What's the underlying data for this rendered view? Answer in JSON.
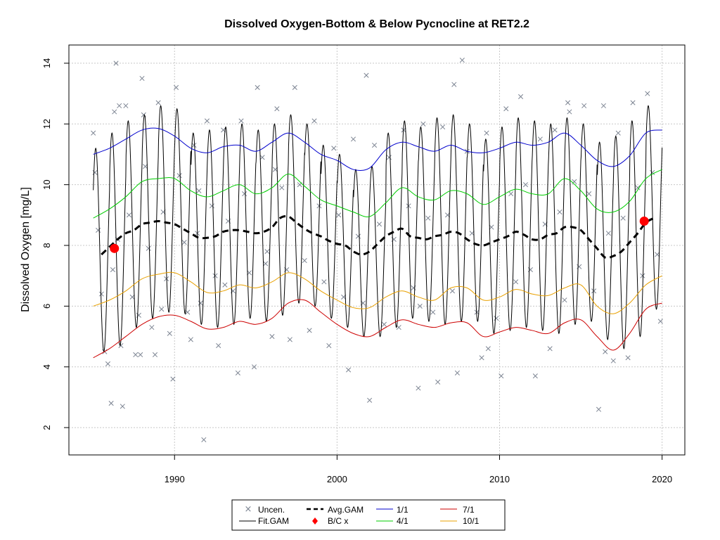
{
  "chart_data": {
    "type": "line",
    "title": "Dissolved Oxygen-Bottom & Below Pycnocline at RET2.2",
    "xlabel": "",
    "ylabel": "Dissolved Oxygen [mg/L]",
    "xlim": [
      1983.5,
      2021.4
    ],
    "ylim": [
      1.1,
      14.6
    ],
    "x_ticks": [
      1990,
      2000,
      2010,
      2020
    ],
    "y_ticks": [
      2,
      4,
      6,
      8,
      10,
      12,
      14
    ],
    "grid": true,
    "legend_position": "bottom-center",
    "legend": [
      "Uncen.",
      "Avg.GAM",
      "1/1",
      "7/1",
      "Fit.GAM",
      "B/C x",
      "4/1",
      "10/1"
    ],
    "colors": {
      "uncensored": "#7b8391",
      "fit_gam": "#000000",
      "avg_gam": "#000000",
      "bc_points": "#ff0000",
      "jan1": "#0000cd",
      "apr1": "#00cd00",
      "jul1": "#cd0000",
      "oct1": "#e8a000"
    },
    "series": [
      {
        "name": "1/1",
        "x": [
          1985,
          1986,
          1987,
          1988,
          1989,
          1990,
          1991,
          1992,
          1993,
          1994,
          1995,
          1996,
          1997,
          1998,
          1999,
          2000,
          2001,
          2002,
          2003,
          2004,
          2005,
          2006,
          2007,
          2008,
          2009,
          2010,
          2011,
          2012,
          2013,
          2014,
          2015,
          2016,
          2017,
          2018,
          2019,
          2020
        ],
        "values": [
          11.0,
          11.2,
          11.5,
          11.8,
          11.85,
          11.6,
          11.2,
          11.05,
          11.25,
          11.3,
          11.1,
          11.4,
          11.7,
          11.4,
          11.0,
          10.8,
          10.5,
          10.55,
          11.15,
          11.4,
          11.25,
          11.1,
          11.3,
          11.1,
          11.05,
          11.2,
          11.4,
          11.3,
          11.4,
          11.7,
          11.3,
          10.8,
          10.6,
          10.95,
          11.7,
          11.8
        ]
      },
      {
        "name": "4/1",
        "x": [
          1985,
          1986,
          1987,
          1988,
          1989,
          1990,
          1991,
          1992,
          1993,
          1994,
          1995,
          1996,
          1997,
          1998,
          1999,
          2000,
          2001,
          2002,
          2003,
          2004,
          2005,
          2006,
          2007,
          2008,
          2009,
          2010,
          2011,
          2012,
          2013,
          2014,
          2015,
          2016,
          2017,
          2018,
          2019,
          2020
        ],
        "values": [
          8.9,
          9.2,
          9.6,
          10.1,
          10.2,
          10.2,
          9.8,
          9.6,
          9.8,
          10.0,
          9.7,
          9.9,
          10.35,
          9.95,
          9.5,
          9.3,
          9.1,
          8.95,
          9.4,
          9.9,
          9.6,
          9.5,
          9.8,
          9.7,
          9.35,
          9.6,
          9.85,
          9.7,
          9.7,
          10.2,
          9.8,
          9.2,
          9.1,
          9.45,
          10.2,
          10.5
        ]
      },
      {
        "name": "Avg.GAM",
        "x": [
          1985.5,
          1986,
          1986.5,
          1987,
          1987.5,
          1988,
          1988.5,
          1989,
          1989.5,
          1990,
          1990.5,
          1991,
          1991.5,
          1992,
          1992.5,
          1993,
          1993.5,
          1994,
          1994.5,
          1995,
          1995.5,
          1996,
          1996.5,
          1997,
          1997.5,
          1998,
          1998.5,
          1999,
          1999.5,
          2000,
          2000.5,
          2001,
          2001.5,
          2002,
          2002.5,
          2003,
          2003.5,
          2004,
          2004.5,
          2005,
          2005.5,
          2006,
          2006.5,
          2007,
          2007.5,
          2008,
          2008.5,
          2009,
          2009.5,
          2010,
          2010.5,
          2011,
          2011.5,
          2012,
          2012.5,
          2013,
          2013.5,
          2014,
          2014.5,
          2015,
          2015.5,
          2016,
          2016.5,
          2017,
          2017.5,
          2018,
          2018.5,
          2019,
          2019.5
        ],
        "values": [
          7.7,
          7.95,
          8.2,
          8.4,
          8.5,
          8.7,
          8.75,
          8.8,
          8.75,
          8.7,
          8.55,
          8.4,
          8.25,
          8.25,
          8.3,
          8.45,
          8.5,
          8.5,
          8.45,
          8.4,
          8.45,
          8.6,
          8.9,
          8.95,
          8.75,
          8.55,
          8.4,
          8.3,
          8.15,
          8.05,
          8.0,
          7.8,
          7.7,
          7.8,
          8.05,
          8.3,
          8.45,
          8.55,
          8.3,
          8.25,
          8.2,
          8.3,
          8.35,
          8.45,
          8.4,
          8.2,
          8.05,
          8.0,
          8.1,
          8.2,
          8.3,
          8.45,
          8.35,
          8.2,
          8.2,
          8.35,
          8.4,
          8.6,
          8.6,
          8.5,
          8.2,
          7.9,
          7.6,
          7.65,
          7.8,
          8.1,
          8.4,
          8.75,
          8.9
        ]
      },
      {
        "name": "10/1",
        "x": [
          1985,
          1986,
          1987,
          1988,
          1989,
          1990,
          1991,
          1992,
          1993,
          1994,
          1995,
          1996,
          1997,
          1998,
          1999,
          2000,
          2001,
          2002,
          2003,
          2004,
          2005,
          2006,
          2007,
          2008,
          2009,
          2010,
          2011,
          2012,
          2013,
          2014,
          2015,
          2016,
          2017,
          2018,
          2019,
          2020
        ],
        "values": [
          6.0,
          6.2,
          6.5,
          6.9,
          7.05,
          7.1,
          6.8,
          6.45,
          6.5,
          6.7,
          6.6,
          6.8,
          7.1,
          6.9,
          6.5,
          6.2,
          5.95,
          5.95,
          6.3,
          6.5,
          6.3,
          6.2,
          6.6,
          6.6,
          6.2,
          6.3,
          6.55,
          6.4,
          6.35,
          6.6,
          6.7,
          6.0,
          5.75,
          6.1,
          6.7,
          7.0
        ]
      },
      {
        "name": "7/1",
        "x": [
          1985,
          1986,
          1987,
          1988,
          1989,
          1990,
          1991,
          1992,
          1993,
          1994,
          1995,
          1996,
          1997,
          1998,
          1999,
          2000,
          2001,
          2002,
          2003,
          2004,
          2005,
          2006,
          2007,
          2008,
          2009,
          2010,
          2011,
          2012,
          2013,
          2014,
          2015,
          2016,
          2017,
          2018,
          2019,
          2020
        ],
        "values": [
          4.3,
          4.6,
          5.0,
          5.4,
          5.65,
          5.7,
          5.5,
          5.25,
          5.3,
          5.5,
          5.4,
          5.6,
          6.1,
          6.2,
          5.8,
          5.4,
          5.1,
          5.0,
          5.3,
          5.55,
          5.4,
          5.3,
          5.45,
          5.45,
          5.0,
          5.15,
          5.3,
          5.2,
          5.1,
          5.45,
          5.55,
          5.0,
          4.55,
          5.1,
          5.9,
          6.1
        ]
      }
    ],
    "fit_gam": {
      "name": "Fit.GAM",
      "start_year": 1985,
      "end_year": 2020,
      "yearly_max": [
        11.2,
        11.7,
        12.1,
        12.3,
        12.6,
        12.5,
        11.7,
        11.8,
        11.9,
        12.0,
        11.8,
        12.0,
        12.3,
        12.0,
        11.3,
        11.0,
        10.5,
        10.6,
        11.7,
        12.1,
        11.9,
        12.2,
        12.3,
        12.0,
        11.5,
        11.9,
        12.2,
        12.1,
        12.0,
        12.2,
        12.0,
        11.4,
        11.6,
        12.1,
        12.6
      ],
      "yearly_min": [
        4.5,
        4.7,
        5.3,
        5.6,
        5.8,
        5.75,
        5.4,
        5.3,
        5.4,
        5.6,
        5.5,
        5.7,
        6.1,
        6.0,
        5.6,
        5.3,
        5.0,
        5.0,
        5.3,
        5.6,
        5.5,
        5.4,
        5.5,
        5.5,
        5.1,
        5.2,
        5.3,
        5.2,
        5.1,
        5.4,
        5.5,
        4.9,
        4.6,
        5.0,
        5.9
      ]
    },
    "bc_points": {
      "name": "B/C x",
      "x": [
        1986.3,
        2018.9
      ],
      "values": [
        7.9,
        8.8
      ]
    },
    "uncensored": {
      "name": "Uncen.",
      "x": [
        1985.0,
        1985.1,
        1985.3,
        1985.5,
        1985.7,
        1985.9,
        1986.1,
        1986.2,
        1986.3,
        1986.5,
        1986.7,
        1986.8,
        1987.0,
        1987.2,
        1987.4,
        1987.6,
        1987.8,
        1988.0,
        1988.2,
        1988.4,
        1988.6,
        1988.8,
        1989.0,
        1989.3,
        1989.5,
        1989.7,
        1989.9,
        1990.1,
        1990.3,
        1990.6,
        1990.8,
        1991.0,
        1991.2,
        1991.4,
        1991.6,
        1991.8,
        1992.0,
        1992.3,
        1992.5,
        1992.7,
        1993.0,
        1993.3,
        1993.6,
        1993.9,
        1994.1,
        1994.3,
        1994.6,
        1994.9,
        1995.1,
        1995.4,
        1995.7,
        1996.0,
        1996.3,
        1996.6,
        1996.9,
        1997.1,
        1997.4,
        1997.7,
        1998.0,
        1998.3,
        1998.6,
        1998.9,
        1999.2,
        1999.5,
        1999.8,
        2000.1,
        2000.4,
        2000.7,
        2001.0,
        2001.3,
        2001.6,
        2002.0,
        2002.3,
        2002.6,
        2002.9,
        2003.2,
        2003.5,
        2003.8,
        2004.1,
        2004.4,
        2004.7,
        2005.0,
        2005.3,
        2005.6,
        2005.9,
        2006.2,
        2006.5,
        2006.8,
        2007.1,
        2007.4,
        2007.7,
        2008.0,
        2008.3,
        2008.6,
        2008.9,
        2009.2,
        2009.5,
        2009.8,
        2010.1,
        2010.4,
        2010.7,
        2011.0,
        2011.3,
        2011.6,
        2011.9,
        2012.2,
        2012.5,
        2012.8,
        2013.1,
        2013.4,
        2013.7,
        2014.0,
        2014.3,
        2014.6,
        2014.9,
        2015.2,
        2015.5,
        2015.8,
        2016.1,
        2016.4,
        2016.7,
        2017.0,
        2017.3,
        2017.6,
        2017.9,
        2018.2,
        2018.5,
        2018.8,
        2019.1,
        2019.4,
        2019.7,
        2019.9,
        1986.4,
        1986.6,
        1987.9,
        1988.1,
        1991.5,
        1993.1,
        1996.2,
        2001.8,
        2005.1,
        2007.2,
        2009.3,
        2014.2,
        2016.5,
        1989.2,
        1995.6
      ],
      "values": [
        11.7,
        10.4,
        8.5,
        6.4,
        4.5,
        4.1,
        2.8,
        7.2,
        12.4,
        8.2,
        4.7,
        2.7,
        12.6,
        9.0,
        6.3,
        4.4,
        5.7,
        13.5,
        10.6,
        7.9,
        5.3,
        4.4,
        12.7,
        9.1,
        6.9,
        5.1,
        3.6,
        13.2,
        10.3,
        8.1,
        5.8,
        4.9,
        11.3,
        8.4,
        6.1,
        1.6,
        12.1,
        9.3,
        7.0,
        4.7,
        11.8,
        8.8,
        6.5,
        3.8,
        12.1,
        9.7,
        7.1,
        4.0,
        13.2,
        10.9,
        7.8,
        5.0,
        12.5,
        9.9,
        7.2,
        4.9,
        13.2,
        10.0,
        7.5,
        5.2,
        12.1,
        9.3,
        6.8,
        4.7,
        11.2,
        9.0,
        6.3,
        3.9,
        11.5,
        8.3,
        6.1,
        2.9,
        11.3,
        8.7,
        5.4,
        10.9,
        8.2,
        5.3,
        11.8,
        9.3,
        6.6,
        3.3,
        12.0,
        8.9,
        5.8,
        3.5,
        11.9,
        9.0,
        6.5,
        3.8,
        14.1,
        11.1,
        8.4,
        5.8,
        4.3,
        11.7,
        8.6,
        5.6,
        3.7,
        12.5,
        9.7,
        6.8,
        12.9,
        10.0,
        7.2,
        3.7,
        11.5,
        8.7,
        4.6,
        11.8,
        9.1,
        6.2,
        12.4,
        10.1,
        7.3,
        12.6,
        9.7,
        6.5,
        2.6,
        12.6,
        8.4,
        4.2,
        11.7,
        8.9,
        4.3,
        12.7,
        9.9,
        7.0,
        13.0,
        10.4,
        7.7,
        5.5,
        14.0,
        12.6,
        4.4,
        12.3,
        9.8,
        6.7,
        10.5,
        13.6,
        6.0,
        13.3,
        4.6,
        12.7,
        4.5,
        5.9,
        7.4
      ]
    }
  }
}
